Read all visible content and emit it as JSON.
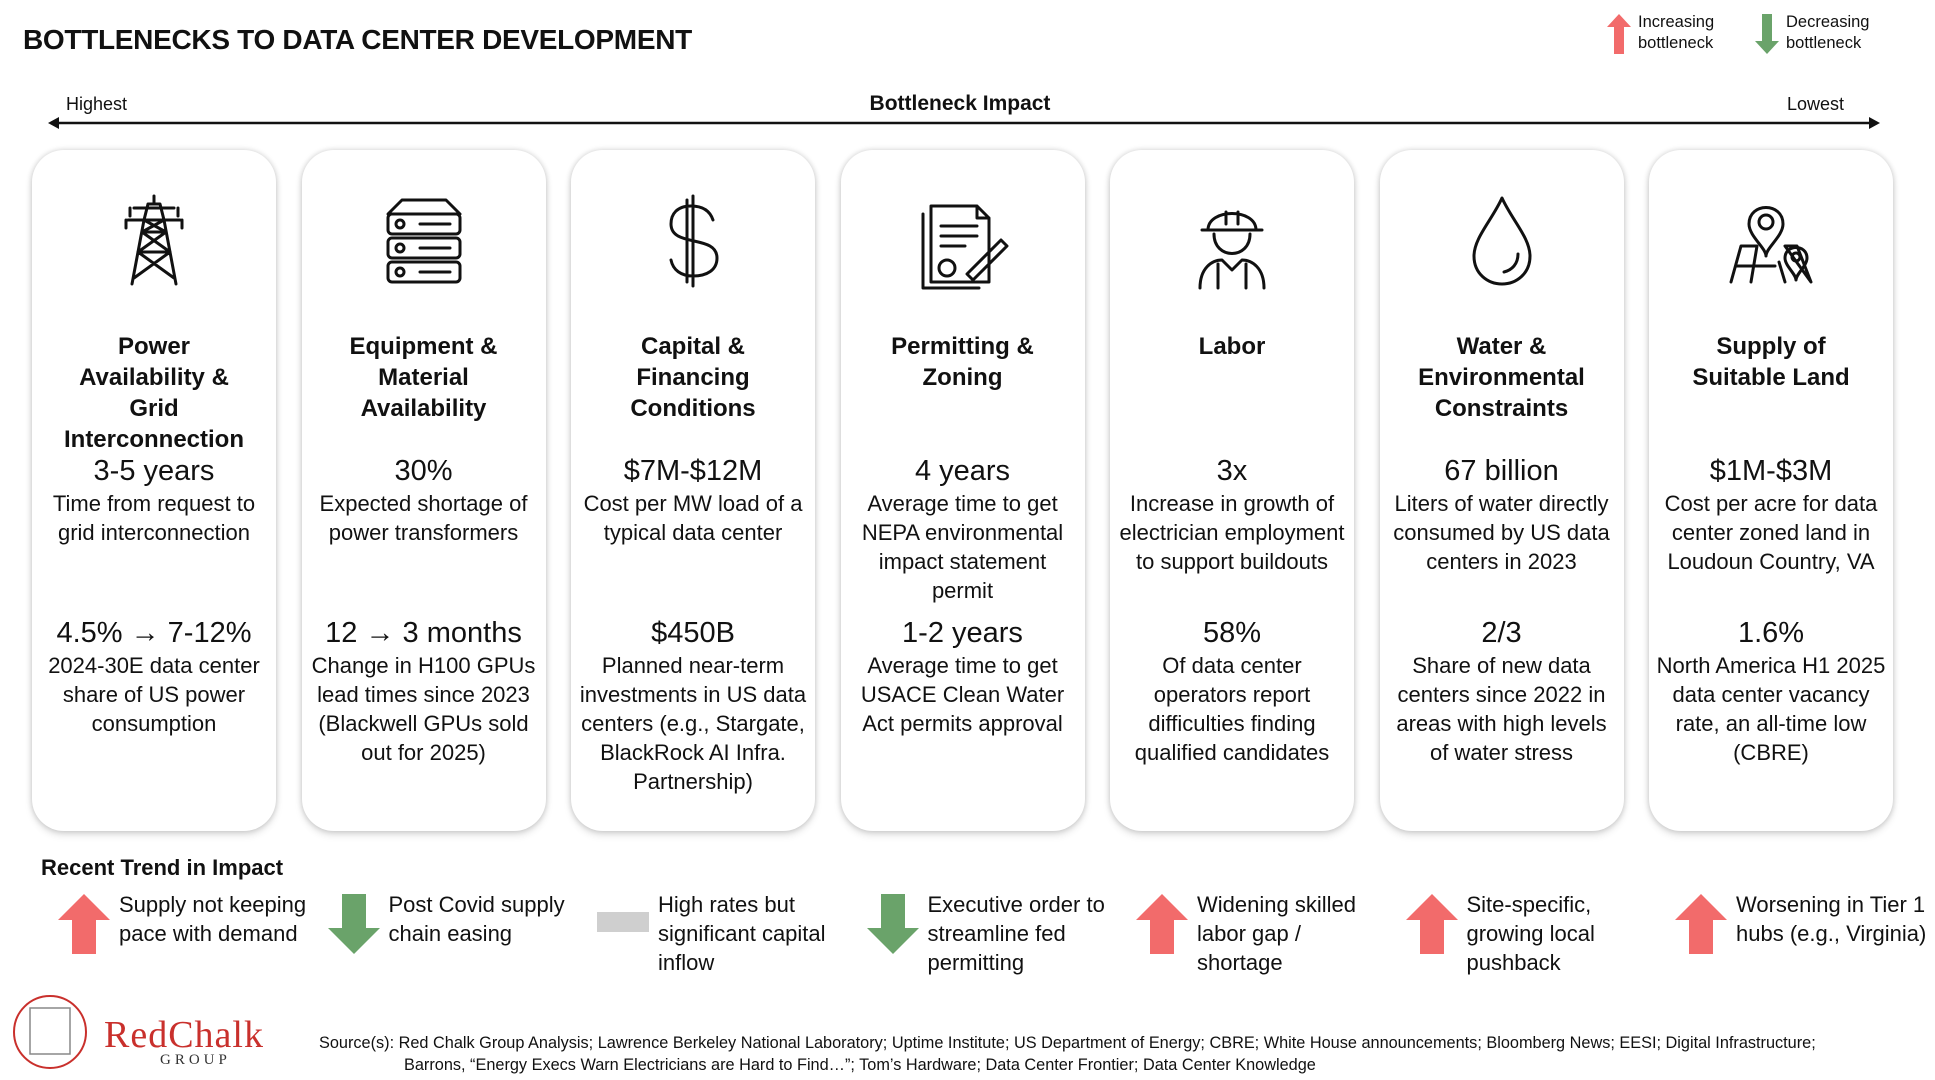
{
  "header": {
    "title": "BOTTLENECKS TO DATA CENTER DEVELOPMENT"
  },
  "legend": [
    {
      "direction": "up",
      "label": "Increasing bottleneck"
    },
    {
      "direction": "down",
      "label": "Decreasing bottleneck"
    }
  ],
  "axis": {
    "left": "Highest",
    "title": "Bottleneck Impact",
    "right": "Lowest"
  },
  "cards": [
    {
      "title": "Power Availability & Grid Interconnection",
      "stats": [
        {
          "value": "3-5 years",
          "label": "Time from request to grid interconnection"
        },
        {
          "value": "4.5% → 7-12%",
          "label": "2024-30E data center share of US power consumption"
        }
      ],
      "trend": {
        "direction": "up",
        "text": "Supply not keeping pace with demand"
      }
    },
    {
      "title": "Equipment & Material Availability",
      "stats": [
        {
          "value": "30%",
          "label": "Expected shortage of power transformers"
        },
        {
          "value": "12 → 3 months",
          "label": "Change in H100 GPUs lead times since 2023 (Blackwell GPUs sold out for 2025)"
        }
      ],
      "trend": {
        "direction": "down",
        "text": "Post Covid supply chain easing"
      }
    },
    {
      "title": "Capital & Financing Conditions",
      "stats": [
        {
          "value": "$7M-$12M",
          "label": "Cost per MW load of a typical data center"
        },
        {
          "value": "$450B",
          "label": "Planned near-term investments in US data centers (e.g., Stargate, BlackRock AI Infra. Partnership)"
        }
      ],
      "trend": {
        "direction": "flat",
        "text": "High rates but significant capital inflow"
      }
    },
    {
      "title": "Permitting & Zoning",
      "stats": [
        {
          "value": "4 years",
          "label": "Average time to get NEPA environmental impact statement permit"
        },
        {
          "value": "1-2 years",
          "label": "Average time to get USACE Clean Water Act permits approval"
        }
      ],
      "trend": {
        "direction": "down",
        "text": "Executive order to streamline fed permitting"
      }
    },
    {
      "title": "Labor",
      "stats": [
        {
          "value": "3x",
          "label": "Increase in growth of electrician employment to support buildouts"
        },
        {
          "value": "58%",
          "label": "Of data center operators report difficulties finding qualified candidates"
        }
      ],
      "trend": {
        "direction": "up",
        "text": "Widening skilled labor gap / shortage"
      }
    },
    {
      "title": "Water & Environmental Constraints",
      "stats": [
        {
          "value": "67 billion",
          "label": "Liters of water directly consumed by US data centers in 2023"
        },
        {
          "value": "2/3",
          "label": "Share of new data centers since 2022 in areas with high levels of water stress"
        }
      ],
      "trend": {
        "direction": "up",
        "text": "Site-specific, growing local pushback"
      }
    },
    {
      "title": "Supply of Suitable Land",
      "stats": [
        {
          "value": "$1M-$3M",
          "label": "Cost per acre for data center zoned land in Loudoun Country, VA"
        },
        {
          "value": "1.6%",
          "label": "North America H1 2025 data center vacancy rate, an all-time low (CBRE)"
        }
      ],
      "trend": {
        "direction": "up",
        "text": "Worsening in Tier 1 hubs (e.g., Virginia)"
      }
    }
  ],
  "trend_heading": "Recent Trend in Impact",
  "logo": {
    "name": "RedChalk",
    "sub": "GROUP"
  },
  "source": [
    "Source(s): Red Chalk Group Analysis; Lawrence Berkeley National Laboratory; Uptime Institute; US Department of Energy; CBRE; White House announcements; Bloomberg News; EESI; Digital Infrastructure;",
    "Barrons, “Energy Execs Warn Electricians are Hard to Find…”; Tom’s Hardware; Data Center Frontier; Data Center Knowledge"
  ]
}
